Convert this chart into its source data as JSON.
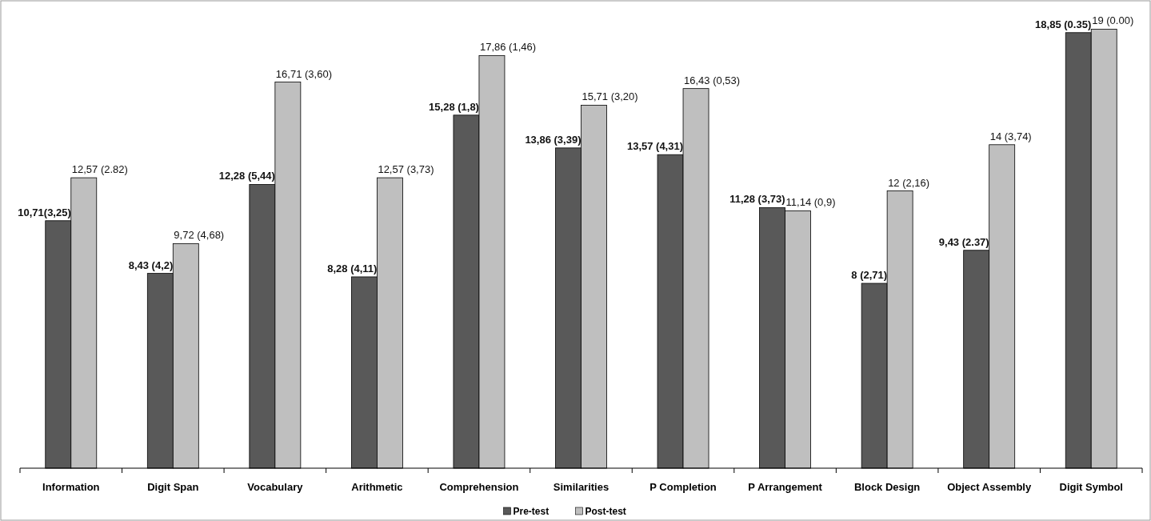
{
  "chart_data": {
    "type": "bar",
    "categories": [
      "Information",
      "Digit Span",
      "Vocabulary",
      "Arithmetic",
      "Comprehension",
      "Similarities",
      "P Completion",
      "P Arrangement",
      "Block Design",
      "Object Assembly",
      "Digit Symbol"
    ],
    "series": [
      {
        "name": "Pre-test",
        "color": "#595959",
        "values": [
          10.71,
          8.43,
          12.28,
          8.28,
          15.28,
          13.86,
          13.57,
          11.28,
          8,
          9.43,
          18.85
        ],
        "value_labels": [
          "10,71(3,25)",
          "8,43 (4,2)",
          "12,28 (5,44)",
          "8,28 (4,11)",
          "15,28 (1,8)",
          "13,86 (3,39)",
          "13,57 (4,31)",
          "11,28 (3,73)",
          "8 (2,71)",
          "9,43 (2.37)",
          "18,85 (0.35)"
        ]
      },
      {
        "name": "Post-test",
        "color": "#bfbfbf",
        "values": [
          12.57,
          9.72,
          16.71,
          12.57,
          17.86,
          15.71,
          16.43,
          11.14,
          12,
          14,
          19
        ],
        "value_labels": [
          "12,57 (2.82)",
          "9,72 (4,68)",
          "16,71 (3,60)",
          "12,57 (3,73)",
          "17,86 (1,46)",
          "15,71 (3,20)",
          "16,43 (0,53)",
          "11,14 (0,9)",
          "12 (2,16)",
          "14 (3,74)",
          "19 (0.00)"
        ]
      }
    ],
    "legend": "bottom"
  }
}
